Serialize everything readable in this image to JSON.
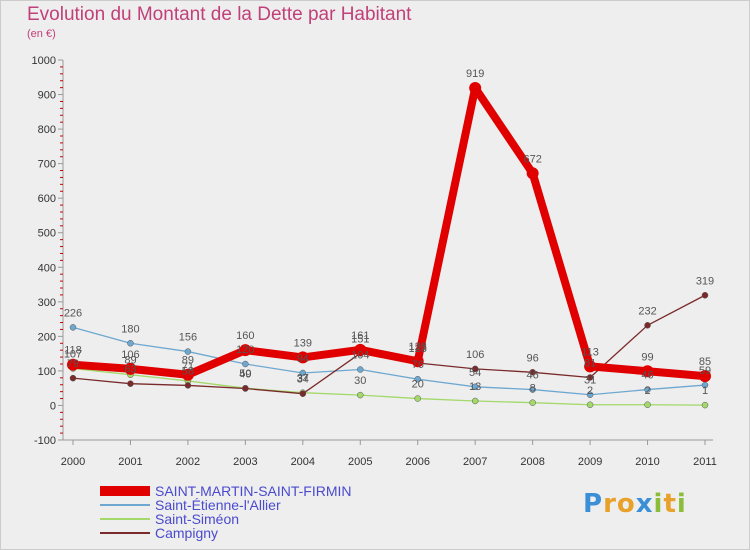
{
  "title": "Evolution du Montant de la Dette par Habitant",
  "subtitle": "(en €)",
  "brand": {
    "letters": [
      {
        "ch": "P",
        "color": "#3b8fd6"
      },
      {
        "ch": "r",
        "color": "#e8a12a"
      },
      {
        "ch": "o",
        "color": "#e8a12a"
      },
      {
        "ch": "x",
        "color": "#3b8fd6"
      },
      {
        "ch": "i",
        "color": "#8bbd3a"
      },
      {
        "ch": "t",
        "color": "#e8a12a"
      },
      {
        "ch": "i",
        "color": "#8bbd3a"
      }
    ]
  },
  "chart_data": {
    "type": "line",
    "x": [
      "2000",
      "2001",
      "2002",
      "2003",
      "2004",
      "2005",
      "2006",
      "2007",
      "2008",
      "2009",
      "2010",
      "2011"
    ],
    "yticks": [
      "1000",
      "900",
      "800",
      "700",
      "600",
      "500",
      "400",
      "300",
      "200",
      "100",
      "0",
      "-100"
    ],
    "ylim": [
      -100,
      1000
    ],
    "grid": false,
    "legend_position": "bottom-left",
    "series": [
      {
        "name": "SAINT-MARTIN-SAINT-FIRMIN",
        "color": "#e00000",
        "values": [
          118,
          106,
          89,
          160,
          139,
          161,
          128,
          919,
          672,
          113,
          99,
          85
        ],
        "labels": [
          "118",
          "106",
          "89",
          "160",
          "139",
          "161",
          "128",
          "919",
          "672",
          "113",
          "99",
          "85"
        ],
        "thick": true
      },
      {
        "name": "Saint-Étienne-l'Allier",
        "color": "#6ea8d0",
        "values": [
          226,
          180,
          156,
          120,
          94,
          104,
          76,
          54,
          46,
          31,
          46,
          59
        ],
        "labels": [
          "226",
          "180",
          "156",
          "120",
          "94",
          "104",
          "76",
          "54",
          "46",
          "31",
          "46",
          "59"
        ],
        "thick": false
      },
      {
        "name": "Saint-Siméon",
        "color": "#a3d86a",
        "values": [
          107,
          89,
          71,
          50,
          37,
          30,
          20,
          13,
          8,
          2,
          2,
          1
        ],
        "labels": [
          "107",
          "89",
          "71",
          "50",
          "37",
          "30",
          "20",
          "13",
          "8",
          "2",
          "2",
          "1"
        ],
        "thick": false
      },
      {
        "name": "Campigny",
        "color": "#7a2a2a",
        "values": [
          79,
          63,
          58,
          49,
          34,
          151,
          123,
          106,
          96,
          81,
          232,
          319
        ],
        "labels": [
          "79",
          "63",
          "58",
          "49",
          "34",
          "151",
          "123",
          "106",
          "96",
          "81",
          "232",
          "319"
        ],
        "thick": false
      }
    ]
  }
}
